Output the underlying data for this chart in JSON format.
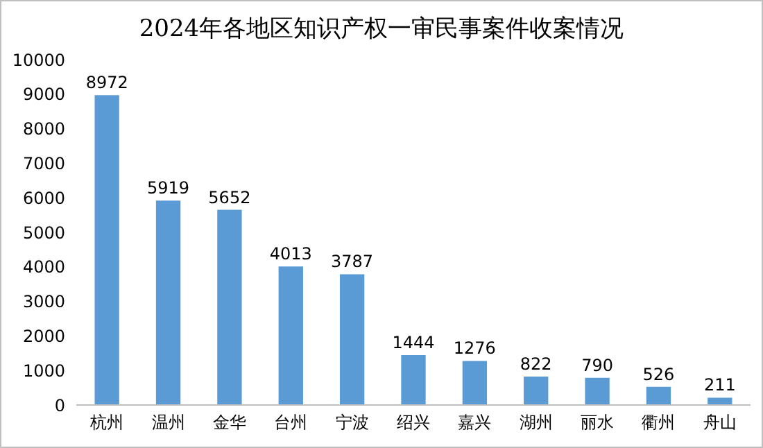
{
  "chart_data": {
    "type": "bar",
    "title": "2024年各地区知识产权一审民事案件收案情况",
    "categories": [
      "杭州",
      "温州",
      "金华",
      "台州",
      "宁波",
      "绍兴",
      "嘉兴",
      "湖州",
      "丽水",
      "衢州",
      "舟山"
    ],
    "values": [
      8972,
      5919,
      5652,
      4013,
      3787,
      1444,
      1276,
      822,
      790,
      526,
      211
    ],
    "color": "#5b9bd5",
    "ylim": [
      0,
      10000
    ],
    "yticks": [
      0,
      1000,
      2000,
      3000,
      4000,
      5000,
      6000,
      7000,
      8000,
      9000,
      10000
    ],
    "grid": false,
    "data_labels": true
  }
}
